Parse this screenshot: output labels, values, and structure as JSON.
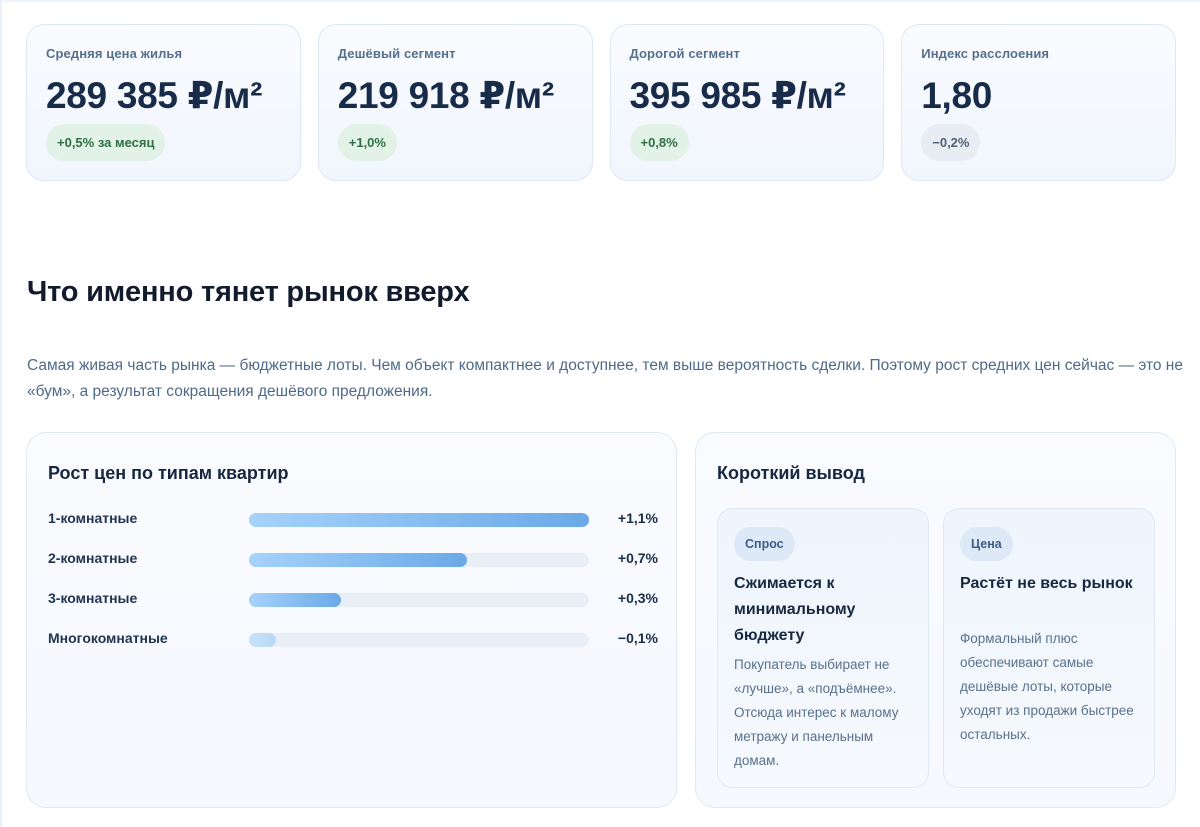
{
  "stats": [
    {
      "label": "Средняя цена жилья",
      "value": "289 385 ₽/м²",
      "badge": "+0,5% за месяц",
      "badge_tone": "green"
    },
    {
      "label": "Дешёвый сегмент",
      "value": "219 918 ₽/м²",
      "badge": "+1,0%",
      "badge_tone": "green"
    },
    {
      "label": "Дорогой сегмент",
      "value": "395 985 ₽/м²",
      "badge": "+0,8%",
      "badge_tone": "green"
    },
    {
      "label": "Индекс расслоения",
      "value": "1,80",
      "badge": "−0,2%",
      "badge_tone": "gray"
    }
  ],
  "section": {
    "title": "Что именно тянет рынок вверх",
    "intro": "Самая живая часть рынка — бюджетные лоты. Чем объект компактнее и доступнее, тем выше вероятность сделки. Поэтому рост средних цен сейчас — это не «бум», а результат сокращения дешёвого предложения."
  },
  "growth": {
    "title": "Рост цен по типам квартир",
    "rows": [
      {
        "label": "1-комнатные",
        "value": "+1,1%",
        "level": 1.0
      },
      {
        "label": "2-комнатные",
        "value": "+0,7%",
        "level": 0.64
      },
      {
        "label": "3-комнатные",
        "value": "+0,3%",
        "level": 0.27
      },
      {
        "label": "Многокомнатные",
        "value": "−0,1%",
        "level": 0.08
      }
    ]
  },
  "summary": {
    "title": "Короткий вывод",
    "cards": [
      {
        "tag": "Спрос",
        "heading": "Сжимается к минимальному бюджету",
        "text": "Покупатель выбирает не «лучше», а «подъёмнее». Отсюда интерес к малому метражу и панельным домам."
      },
      {
        "tag": "Цена",
        "heading": "Растёт не весь рынок",
        "text": "Формальный плюс обеспечивают самые дешёвые лоты, которые уходят из продажи быстрее остальных."
      }
    ]
  },
  "colors": {
    "positive_badge": "#e2f2e6",
    "neutral_badge": "#e8edf3",
    "bar_accent": "#6aa9e6",
    "heading": "#111b2c"
  }
}
